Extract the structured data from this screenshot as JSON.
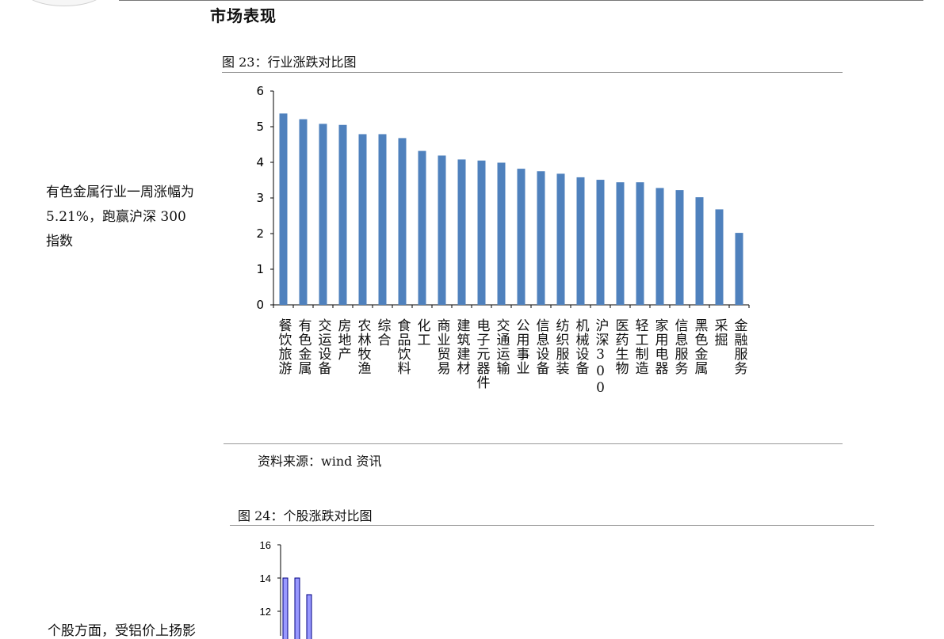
{
  "header": {
    "section_title": "市场表现"
  },
  "figure23": {
    "title": "图 23：行业涨跌对比图",
    "source": "资料来源：wind 资讯"
  },
  "side_note_1": "有色金属行业一周涨幅为 5.21%，跑赢沪深 300 指数",
  "figure24": {
    "title": "图 24：个股涨跌对比图"
  },
  "side_note_2": "个股方面，受铝价上扬影",
  "colors": {
    "bar23": "#4f81bd",
    "bar24": "#9999ff",
    "bar24_edge": "#000080"
  },
  "chart_data": [
    {
      "type": "bar",
      "title": "",
      "ylim": [
        0,
        6
      ],
      "yticks": [
        0,
        1,
        2,
        3,
        4,
        5,
        6
      ],
      "categories": [
        "餐饮旅游",
        "有色金属",
        "交运设备",
        "房地产",
        "农林牧渔",
        "综合",
        "食品饮料",
        "化工",
        "商业贸易",
        "建筑建材",
        "电子元器件",
        "交通运输",
        "公用事业",
        "信息设备",
        "纺织服装",
        "机械设备",
        "沪深300",
        "医药生物",
        "轻工制造",
        "家用电器",
        "信息服务",
        "黑色金属",
        "采掘",
        "金融服务"
      ],
      "values": [
        5.37,
        5.21,
        5.08,
        5.05,
        4.79,
        4.79,
        4.68,
        4.32,
        4.19,
        4.08,
        4.05,
        3.99,
        3.82,
        3.75,
        3.68,
        3.58,
        3.51,
        3.44,
        3.44,
        3.28,
        3.22,
        3.02,
        2.68,
        2.02
      ],
      "grid": false,
      "legend": "none"
    },
    {
      "type": "bar",
      "title": "",
      "ylim": [
        0,
        16
      ],
      "yticks_visible": [
        12,
        14,
        16
      ],
      "values_visible": [
        14,
        14,
        13
      ],
      "grid": false,
      "legend": "none"
    }
  ]
}
